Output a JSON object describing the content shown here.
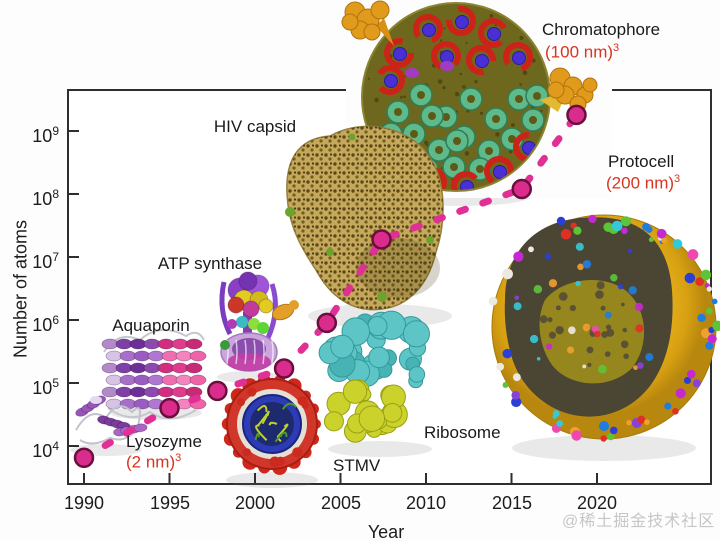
{
  "watermark": "@稀土掘金技术社区",
  "chart_data": {
    "type": "scatter",
    "title": "",
    "xlabel": "Year",
    "ylabel": "Number of atoms",
    "x_tick_labels": [
      "1990",
      "1995",
      "2000",
      "2005",
      "2010",
      "2015",
      "2020"
    ],
    "y_ticks": [
      {
        "base": "10",
        "exp": "9"
      },
      {
        "base": "10",
        "exp": "8"
      },
      {
        "base": "10",
        "exp": "7"
      },
      {
        "base": "10",
        "exp": "6"
      },
      {
        "base": "10",
        "exp": "5"
      },
      {
        "base": "10",
        "exp": "4"
      }
    ],
    "y_scale": "log",
    "xlim": [
      1989,
      2026.5
    ],
    "ylim": [
      2500,
      4500000000
    ],
    "grid": false,
    "legend": false,
    "trend": {
      "style": "dashed",
      "color": "#e13095",
      "marker": "circle",
      "marker_fill": "#da2c8c",
      "marker_stroke": "#6a0f3c"
    },
    "points": [
      {
        "year": 1990,
        "atoms": 6500
      },
      {
        "year": 1995,
        "atoms": 40000
      },
      {
        "year": 1997.8,
        "atoms": 75000
      },
      {
        "year": 2001.7,
        "atoms": 170000
      },
      {
        "year": 2004.2,
        "atoms": 900000
      },
      {
        "year": 2007.4,
        "atoms": 19000000
      },
      {
        "year": 2015.6,
        "atoms": 120000000
      },
      {
        "year": 2018.8,
        "atoms": 1800000000
      }
    ],
    "structures": [
      {
        "name": "Lysozyme",
        "size": "(2 nm)",
        "size_sup": "3"
      },
      {
        "name": "Aquaporin",
        "size": "",
        "size_sup": ""
      },
      {
        "name": "ATP synthase",
        "size": "",
        "size_sup": ""
      },
      {
        "name": "STMV",
        "size": "",
        "size_sup": ""
      },
      {
        "name": "HIV capsid",
        "size": "",
        "size_sup": ""
      },
      {
        "name": "Ribosome",
        "size": "",
        "size_sup": ""
      },
      {
        "name": "Chromatophore",
        "size": "(100 nm)",
        "size_sup": "3"
      },
      {
        "name": "Protocell",
        "size": "(200 nm)",
        "size_sup": "3"
      }
    ]
  }
}
